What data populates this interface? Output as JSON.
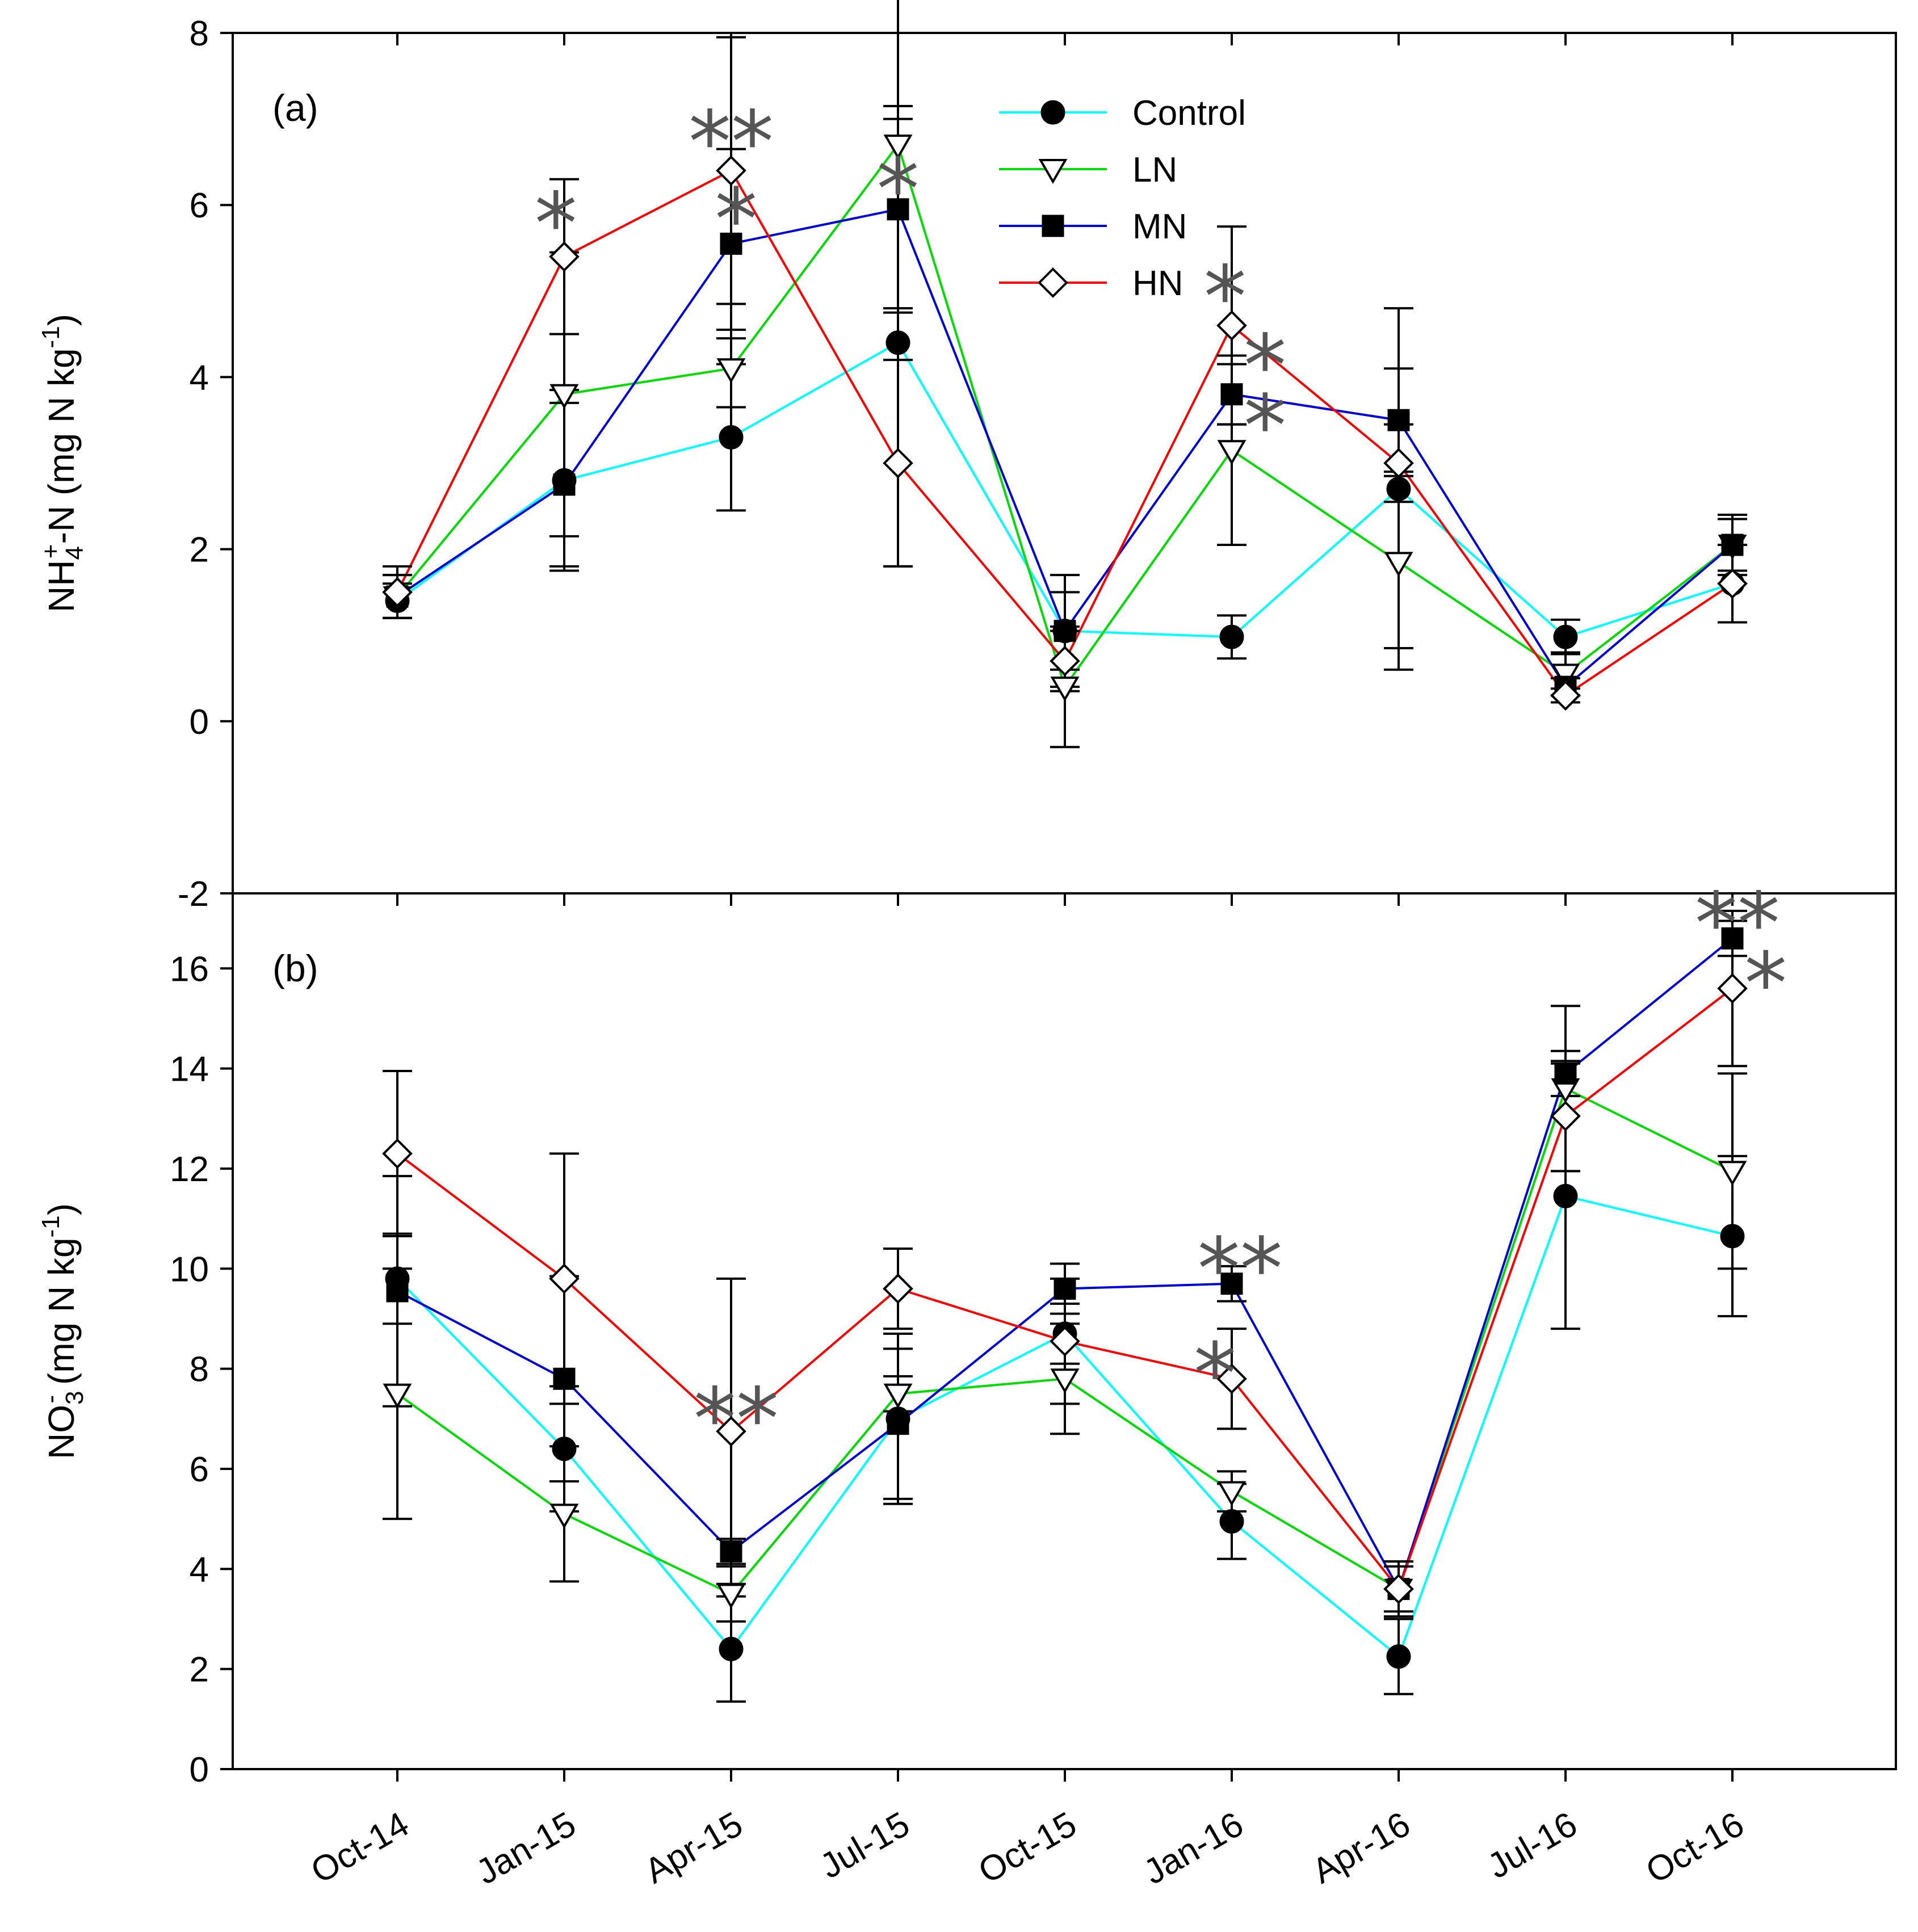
{
  "chart_data": [
    {
      "type": "line",
      "panel_label": "(a)",
      "ylabel_parts": {
        "base": "NH",
        "sub": "4",
        "sup": "+",
        "rest": "-N (mg N kg",
        "unit_sup": "-1",
        "close": ")"
      },
      "ylim": [
        -2,
        8
      ],
      "yticks": [
        -2,
        0,
        2,
        4,
        6,
        8
      ],
      "categories": [
        "Oct-14",
        "Jan-15",
        "Apr-15",
        "Jul-15",
        "Oct-15",
        "Jan-16",
        "Apr-16",
        "Jul-16",
        "Oct-16"
      ],
      "series": [
        {
          "name": "Control",
          "color": "#00FFFF",
          "marker": "circle",
          "values": [
            1.4,
            2.8,
            3.3,
            4.4,
            1.05,
            0.98,
            2.7,
            0.98,
            1.6
          ],
          "errors": [
            0.2,
            1.05,
            0.85,
            2.6,
            0.45,
            0.25,
            2.1,
            0.2,
            0.45
          ]
        },
        {
          "name": "LN",
          "color": "#00DD00",
          "marker": "triangle-down",
          "values": [
            1.45,
            3.8,
            4.1,
            6.7,
            0.4,
            3.15,
            1.85,
            0.55,
            2.05
          ],
          "errors": [
            0.25,
            1.65,
            0.45,
            1.9,
            0.7,
            1.1,
            1.0,
            0.25,
            0.3
          ]
        },
        {
          "name": "MN",
          "color": "#0000DD",
          "marker": "square",
          "values": [
            1.45,
            2.75,
            5.55,
            5.95,
            1.05,
            3.8,
            3.5,
            0.4,
            2.05
          ],
          "errors": [
            0.25,
            0.95,
            1.1,
            1.2,
            0.65,
            0.35,
            0.6,
            0.1,
            0.35
          ]
        },
        {
          "name": "HN",
          "color": "#FF0000",
          "marker": "diamond",
          "values": [
            1.5,
            5.4,
            6.4,
            3.0,
            0.7,
            4.6,
            3.0,
            0.3,
            1.6
          ],
          "errors": [
            0.3,
            0.9,
            1.55,
            1.2,
            0.35,
            1.15,
            0.45,
            0.08,
            0.45
          ]
        }
      ],
      "annotations": [
        {
          "text": "*",
          "category": "Jan-15",
          "y": 5.9,
          "dx": -0.05
        },
        {
          "text": "**",
          "category": "Apr-15",
          "y": 6.85,
          "dx": 0.0
        },
        {
          "text": "*",
          "category": "Apr-15",
          "y": 5.95,
          "dx": 0.03
        },
        {
          "text": "*",
          "category": "Jul-15",
          "y": 6.3,
          "dx": 0.0
        },
        {
          "text": "*",
          "category": "Jan-16",
          "y": 5.05,
          "dx": -0.04
        },
        {
          "text": "*",
          "category": "Jan-16",
          "y": 4.25,
          "dx": 0.2
        },
        {
          "text": "*",
          "category": "Jan-16",
          "y": 3.55,
          "dx": 0.2
        }
      ]
    },
    {
      "type": "line",
      "panel_label": "(b)",
      "ylabel_parts": {
        "base": "NO",
        "sub": "3",
        "sup": "-",
        "rest": " (mg N kg",
        "unit_sup": "-1",
        "close": ")"
      },
      "ylim": [
        0,
        17.5
      ],
      "yticks": [
        0,
        2,
        4,
        6,
        8,
        10,
        12,
        14,
        16
      ],
      "categories": [
        "Oct-14",
        "Jan-15",
        "Apr-15",
        "Jul-15",
        "Oct-15",
        "Jan-16",
        "Apr-16",
        "Jul-16",
        "Oct-16"
      ],
      "series": [
        {
          "name": "Control",
          "color": "#00FFFF",
          "marker": "circle",
          "values": [
            9.8,
            6.4,
            2.4,
            7.0,
            8.7,
            4.95,
            2.25,
            11.45,
            10.65
          ],
          "errors": [
            0.9,
            1.25,
            1.05,
            1.7,
            0.6,
            0.75,
            0.75,
            2.65,
            1.6
          ]
        },
        {
          "name": "LN",
          "color": "#00DD00",
          "marker": "triangle-down",
          "values": [
            7.5,
            5.1,
            3.5,
            7.5,
            7.8,
            5.55,
            3.6,
            13.6,
            11.95
          ],
          "errors": [
            2.5,
            1.35,
            0.55,
            0.35,
            1.1,
            0.4,
            0.55,
            1.65,
            1.95
          ]
        },
        {
          "name": "MN",
          "color": "#0000DD",
          "marker": "square",
          "values": [
            9.55,
            7.8,
            4.35,
            6.9,
            9.6,
            9.7,
            3.6,
            13.9,
            16.6
          ],
          "errors": [
            2.3,
            2.05,
            0.25,
            1.5,
            0.5,
            0.35,
            0.45,
            0.45,
            0.35
          ]
        },
        {
          "name": "HN",
          "color": "#FF0000",
          "marker": "diamond",
          "values": [
            12.3,
            9.8,
            6.75,
            9.6,
            8.55,
            7.8,
            3.6,
            13.05,
            15.6
          ],
          "errors": [
            1.65,
            2.5,
            3.05,
            0.8,
            1.25,
            1.0,
            0.55,
            1.1,
            1.55
          ]
        }
      ],
      "annotations": [
        {
          "text": "**",
          "category": "Apr-15",
          "y": 7.2,
          "dx": 0.03
        },
        {
          "text": "**",
          "category": "Jan-16",
          "y": 10.2,
          "dx": 0.05
        },
        {
          "text": "*",
          "category": "Jan-16",
          "y": 8.1,
          "dx": -0.1
        },
        {
          "text": "**",
          "category": "Oct-16",
          "y": 17.1,
          "dx": 0.03
        },
        {
          "text": "*",
          "category": "Oct-16",
          "y": 15.9,
          "dx": 0.2
        }
      ]
    }
  ]
}
